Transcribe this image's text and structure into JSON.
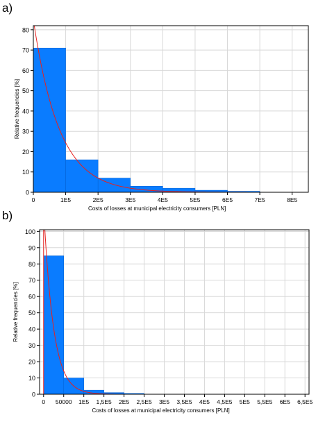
{
  "panels": {
    "a_label": "a)",
    "b_label": "b)"
  },
  "colors": {
    "bar": "#0a7cff",
    "curve": "#e8201e",
    "grid": "#d8d8d8",
    "axis": "#000000"
  },
  "chart_data": [
    {
      "type": "bar",
      "title": "",
      "xlabel": "Costs of losses at municipal electricity consumers [PLN]",
      "ylabel": "Relative frequencies [%]",
      "xlim": [
        0,
        850000
      ],
      "ylim": [
        0,
        82
      ],
      "grid": true,
      "xticks": [
        0,
        100000,
        200000,
        300000,
        400000,
        500000,
        600000,
        700000,
        800000
      ],
      "xtick_labels": [
        "0",
        "1E5",
        "2E5",
        "3E5",
        "4E5",
        "5E5",
        "6E5",
        "7E5",
        "8E5"
      ],
      "yticks": [
        0,
        10,
        20,
        30,
        40,
        50,
        60,
        70,
        80
      ],
      "bins": [
        {
          "from": 0,
          "to": 100000,
          "value": 71
        },
        {
          "from": 100000,
          "to": 200000,
          "value": 16
        },
        {
          "from": 200000,
          "to": 300000,
          "value": 7
        },
        {
          "from": 300000,
          "to": 400000,
          "value": 3
        },
        {
          "from": 400000,
          "to": 500000,
          "value": 2
        },
        {
          "from": 500000,
          "to": 600000,
          "value": 1
        },
        {
          "from": 600000,
          "to": 700000,
          "value": 0.5
        }
      ],
      "fit": {
        "type": "exponential",
        "peak": 85,
        "scale": 80000
      }
    },
    {
      "type": "bar",
      "title": "",
      "xlabel": "Costs of losses at municipal electricity consumers [PLN]",
      "ylabel": "Relative frequencies [%]",
      "xlim": [
        -10000,
        660000
      ],
      "ylim": [
        0,
        101
      ],
      "grid": true,
      "xticks": [
        0,
        50000,
        100000,
        150000,
        200000,
        250000,
        300000,
        350000,
        400000,
        450000,
        500000,
        550000,
        600000,
        650000
      ],
      "xtick_labels": [
        "0",
        "50000",
        "1E5",
        "1,5E5",
        "2E5",
        "2,5E5",
        "3E5",
        "3,5E5",
        "4E5",
        "4,5E5",
        "5E5",
        "5,5E5",
        "6E5",
        "6,5E5"
      ],
      "yticks": [
        0,
        10,
        20,
        30,
        40,
        50,
        60,
        70,
        80,
        90,
        100
      ],
      "bins": [
        {
          "from": 0,
          "to": 50000,
          "value": 85
        },
        {
          "from": 50000,
          "to": 100000,
          "value": 10
        },
        {
          "from": 100000,
          "to": 150000,
          "value": 2.5
        },
        {
          "from": 150000,
          "to": 200000,
          "value": 1
        },
        {
          "from": 200000,
          "to": 250000,
          "value": 0.5
        }
      ],
      "fit": {
        "type": "exponential",
        "peak": 115,
        "scale": 24000
      }
    }
  ]
}
